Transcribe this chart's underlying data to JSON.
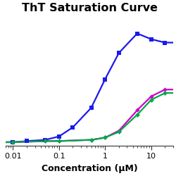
{
  "title": "ThT Saturation Curve",
  "xlabel": "Concentration (μM)",
  "xlim": [
    0.007,
    30
  ],
  "ylim": [
    -0.03,
    1.1
  ],
  "blue_x": [
    0.01,
    0.02,
    0.05,
    0.1,
    0.2,
    0.5,
    1.0,
    2.0,
    5.0,
    10.0,
    20.0
  ],
  "blue_y": [
    0.0,
    0.01,
    0.02,
    0.05,
    0.13,
    0.3,
    0.55,
    0.78,
    0.95,
    0.9,
    0.87
  ],
  "magenta_x": [
    0.01,
    0.05,
    0.1,
    0.5,
    1.0,
    2.0,
    5.0,
    10.0,
    20.0
  ],
  "magenta_y": [
    0.0,
    0.01,
    0.01,
    0.02,
    0.04,
    0.1,
    0.28,
    0.4,
    0.46
  ],
  "green_x": [
    0.01,
    0.05,
    0.1,
    0.5,
    1.0,
    2.0,
    5.0,
    10.0,
    20.0
  ],
  "green_y": [
    0.0,
    0.01,
    0.01,
    0.02,
    0.04,
    0.09,
    0.24,
    0.37,
    0.43
  ],
  "blue_color": "#1a1aee",
  "magenta_color": "#cc00cc",
  "green_color": "#00aa44",
  "title_fontsize": 11.5,
  "label_fontsize": 9,
  "tick_fontsize": 8
}
